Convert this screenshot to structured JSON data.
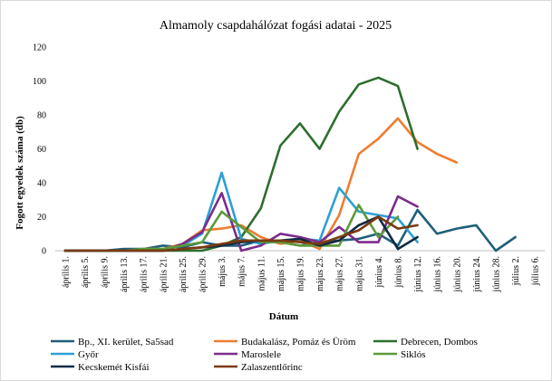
{
  "chart_data": {
    "type": "line",
    "title": "Almamoly csapdahálózat fogási adatai - 2025",
    "xlabel": "Dátum",
    "ylabel": "Fogott egyedek száma (db)",
    "ylim": [
      0,
      120
    ],
    "yticks": [
      0,
      20,
      40,
      60,
      80,
      100,
      120
    ],
    "grid": false,
    "legend": "bottom",
    "categories": [
      "április 1.",
      "április 5.",
      "április 9.",
      "április 13.",
      "április 17.",
      "április 21.",
      "április 25.",
      "április 29.",
      "május 3.",
      "május 7.",
      "május 11.",
      "május 15.",
      "május 19.",
      "május 23.",
      "május 27.",
      "május 31.",
      "június 4.",
      "június 8.",
      "június 12.",
      "június 16.",
      "június 20.",
      "június 24.",
      "június 28.",
      "július 2.",
      "július 6."
    ],
    "series": [
      {
        "name": "Bp., XI. kerület, Sa5sad",
        "color": "#1f5f7a",
        "values": [
          0,
          0,
          0,
          1,
          1,
          3,
          2,
          5,
          3,
          3,
          6,
          5,
          3,
          5,
          6,
          7,
          10,
          3,
          24,
          10,
          13,
          15,
          0,
          8,
          null
        ]
      },
      {
        "name": "Budakalász, Pomáz és Üröm",
        "color": "#ed7d31",
        "values": [
          0,
          0,
          0,
          0,
          1,
          1,
          4,
          12,
          13,
          15,
          8,
          4,
          6,
          1,
          21,
          57,
          66,
          78,
          64,
          57,
          52,
          null,
          null,
          null,
          null
        ]
      },
      {
        "name": "Debrecen, Dombos",
        "color": "#2e6e2e",
        "values": [
          0,
          0,
          0,
          0,
          0,
          0,
          0,
          0,
          3,
          8,
          25,
          62,
          75,
          60,
          82,
          98,
          102,
          97,
          60,
          null,
          null,
          null,
          null,
          null,
          null
        ]
      },
      {
        "name": "Győr",
        "color": "#2e9fd6",
        "values": [
          0,
          0,
          0,
          0,
          0,
          1,
          3,
          10,
          46,
          7,
          4,
          6,
          7,
          6,
          37,
          23,
          21,
          19,
          5,
          null,
          null,
          null,
          null,
          null,
          null
        ]
      },
      {
        "name": "Maroslele",
        "color": "#7b2c8c",
        "values": [
          0,
          0,
          0,
          0,
          0,
          0,
          4,
          11,
          34,
          0,
          3,
          10,
          8,
          5,
          14,
          5,
          5,
          32,
          26,
          null,
          null,
          null,
          null,
          null,
          null
        ]
      },
      {
        "name": "Siklós",
        "color": "#5b9a3a",
        "values": [
          0,
          0,
          0,
          0,
          1,
          1,
          3,
          5,
          23,
          14,
          5,
          5,
          3,
          3,
          3,
          27,
          8,
          20,
          null,
          null,
          null,
          null,
          null,
          null,
          null
        ]
      },
      {
        "name": "Kecskemét Kisfái",
        "color": "#0f2a44",
        "values": [
          0,
          0,
          0,
          0,
          0,
          0,
          1,
          2,
          3,
          5,
          6,
          6,
          7,
          3,
          6,
          15,
          20,
          1,
          8,
          null,
          null,
          null,
          null,
          null,
          null
        ]
      },
      {
        "name": "Zalaszentlőrinc",
        "color": "#7a3a10",
        "values": [
          0,
          0,
          0,
          0,
          0,
          0,
          1,
          2,
          4,
          6,
          6,
          6,
          5,
          4,
          8,
          12,
          20,
          13,
          15,
          null,
          null,
          null,
          null,
          null,
          null
        ]
      }
    ]
  }
}
